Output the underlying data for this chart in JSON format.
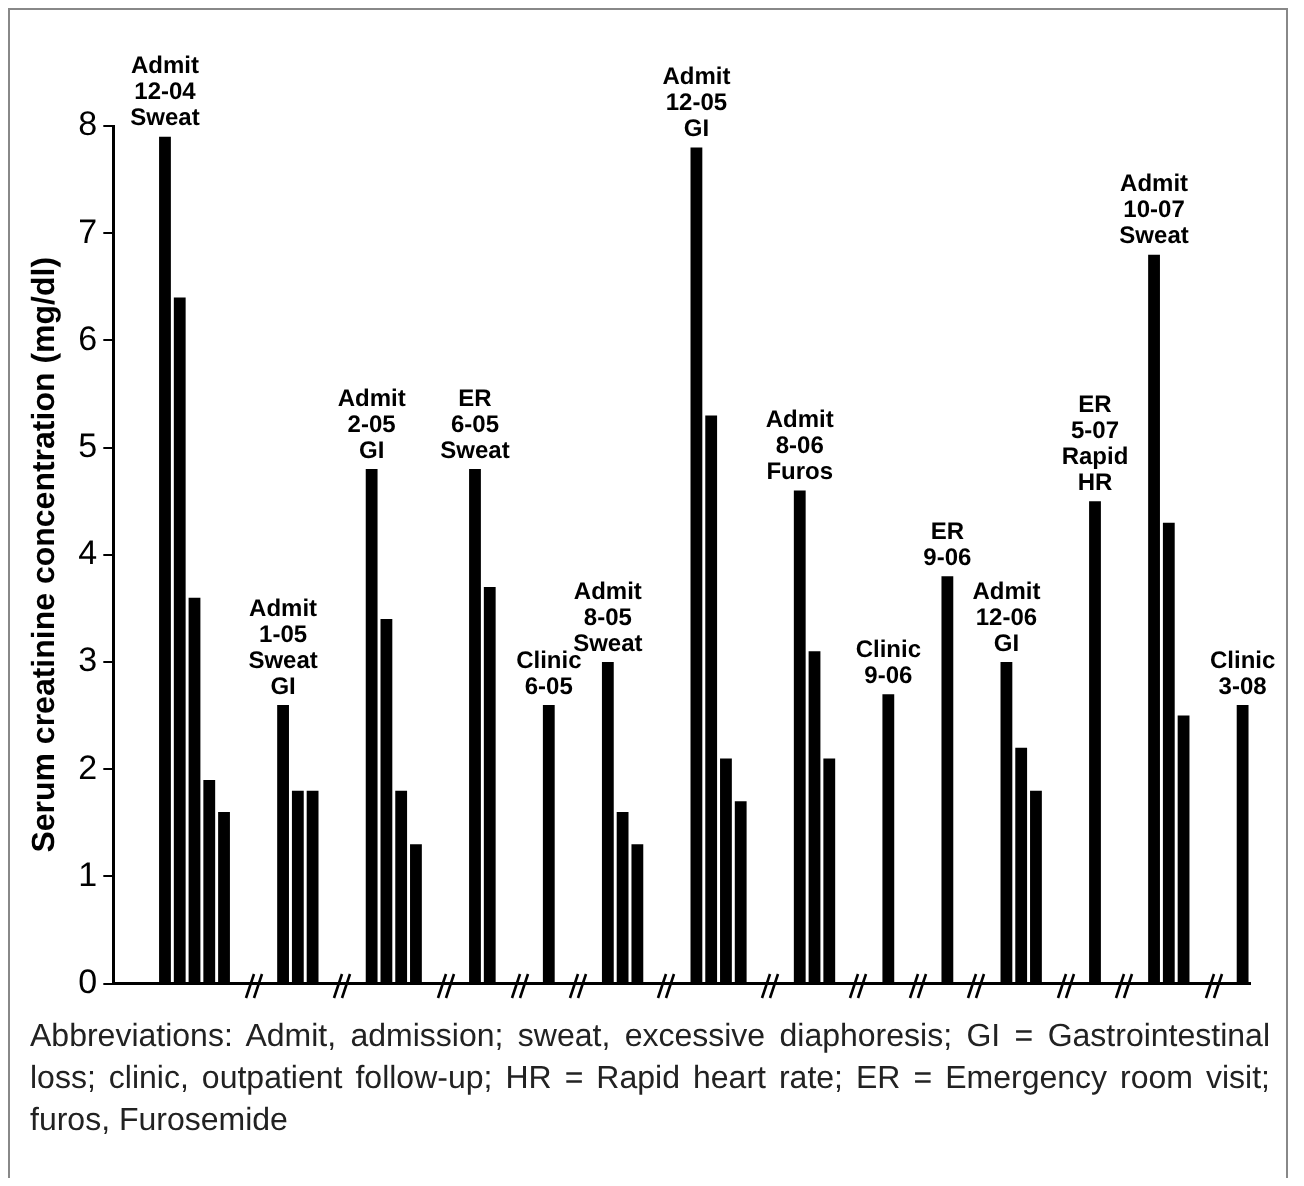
{
  "chart_data": {
    "type": "bar",
    "ylabel": "Serum creatinine concentration (mg/dl)",
    "categories": [
      null,
      null,
      null,
      "Admit 12-04 Sweat",
      null,
      null,
      null,
      null,
      null,
      null,
      null,
      "Admit 1-05 Sweat GI",
      null,
      null,
      null,
      null,
      null,
      "Admit 2-05 GI",
      null,
      null,
      null,
      null,
      null,
      null,
      "ER 6-05 Sweat",
      null,
      null,
      null,
      null,
      "Clinic 6-05",
      null,
      null,
      null,
      "Admit 8-05 Sweat",
      null,
      null,
      null,
      null,
      null,
      "Admit 12-05 GI",
      null,
      null,
      null,
      null,
      null,
      null,
      "Admit 8-06 Furos",
      null,
      null,
      null,
      null,
      null,
      "Clinic 9-06",
      null,
      null,
      null,
      "ER 9-06",
      null,
      null,
      null,
      "Admit 12-06 GI",
      null,
      null,
      null,
      null,
      null,
      "ER 5-07 Rapid HR",
      null,
      null,
      null,
      "Admit 10-07 Sweat",
      null,
      null,
      null,
      null,
      null,
      "Clinic 3-08"
    ],
    "values": [
      null,
      null,
      null,
      7.9,
      6.4,
      3.6,
      1.9,
      1.6,
      null,
      null,
      null,
      2.6,
      1.8,
      1.8,
      null,
      null,
      null,
      4.8,
      3.4,
      1.8,
      1.3,
      null,
      null,
      null,
      4.8,
      3.7,
      null,
      null,
      null,
      2.6,
      null,
      null,
      null,
      3.0,
      1.6,
      1.3,
      null,
      null,
      null,
      7.8,
      5.3,
      2.1,
      1.7,
      null,
      null,
      null,
      4.6,
      3.1,
      2.1,
      null,
      null,
      null,
      2.7,
      null,
      null,
      null,
      3.8,
      null,
      null,
      null,
      3.0,
      2.2,
      1.8,
      null,
      null,
      null,
      4.5,
      null,
      null,
      null,
      6.8,
      4.3,
      2.5,
      null,
      null,
      null,
      2.6
    ],
    "color": "#000000",
    "ylim": [
      0,
      8
    ],
    "yticks": [
      0,
      1,
      2,
      3,
      4,
      5,
      6,
      7,
      8
    ],
    "grid": false,
    "legend": false,
    "tick_labels": "y",
    "annotations": [
      "Abbreviations: Admit, admission; sweat, excessive diaphoresis; GI = Gastrointestinal loss; clinic, outpatient follow-up; HR = Rapid heart rate; ER = Emergency room visit; furos, Furosemide"
    ]
  }
}
